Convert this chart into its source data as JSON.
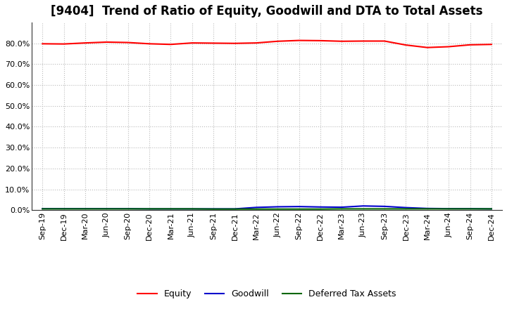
{
  "title": "[9404]  Trend of Ratio of Equity, Goodwill and DTA to Total Assets",
  "ylim": [
    0,
    90
  ],
  "yticks": [
    0,
    10,
    20,
    30,
    40,
    50,
    60,
    70,
    80
  ],
  "ytick_labels": [
    "0.0%",
    "10.0%",
    "20.0%",
    "30.0%",
    "40.0%",
    "50.0%",
    "60.0%",
    "70.0%",
    "80.0%"
  ],
  "background_color": "#ffffff",
  "plot_bg_color": "#ffffff",
  "grid_color": "#bbbbbb",
  "x_labels": [
    "Sep-19",
    "Dec-19",
    "Mar-20",
    "Jun-20",
    "Sep-20",
    "Dec-20",
    "Mar-21",
    "Jun-21",
    "Sep-21",
    "Dec-21",
    "Mar-22",
    "Jun-22",
    "Sep-22",
    "Dec-22",
    "Mar-23",
    "Jun-23",
    "Sep-23",
    "Dec-23",
    "Mar-24",
    "Jun-24",
    "Sep-24",
    "Dec-24"
  ],
  "equity": [
    79.8,
    79.7,
    80.2,
    80.6,
    80.4,
    79.8,
    79.5,
    80.2,
    80.1,
    80.0,
    80.2,
    81.0,
    81.4,
    81.3,
    81.0,
    81.1,
    81.1,
    79.2,
    78.0,
    78.4,
    79.3,
    79.5
  ],
  "goodwill": [
    0.7,
    0.7,
    0.7,
    0.7,
    0.7,
    0.6,
    0.6,
    0.6,
    0.6,
    0.6,
    1.3,
    1.6,
    1.7,
    1.5,
    1.4,
    2.0,
    1.8,
    1.2,
    0.8,
    0.7,
    0.7,
    0.6
  ],
  "dta": [
    0.6,
    0.6,
    0.6,
    0.6,
    0.6,
    0.6,
    0.6,
    0.6,
    0.5,
    0.5,
    0.5,
    0.5,
    0.5,
    0.5,
    0.6,
    0.6,
    0.6,
    0.6,
    0.6,
    0.6,
    0.6,
    0.6
  ],
  "equity_color": "#ff0000",
  "goodwill_color": "#0000cc",
  "dta_color": "#006600",
  "line_width": 1.5,
  "legend_labels": [
    "Equity",
    "Goodwill",
    "Deferred Tax Assets"
  ],
  "title_fontsize": 12,
  "tick_fontsize": 8
}
